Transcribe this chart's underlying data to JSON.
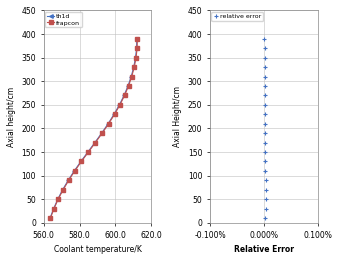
{
  "axial_heights": [
    10,
    30,
    50,
    70,
    90,
    110,
    130,
    150,
    170,
    190,
    210,
    230,
    250,
    270,
    290,
    310,
    330,
    350,
    370,
    390
  ],
  "th1d_temps": [
    563.5,
    565.5,
    567.8,
    570.5,
    573.6,
    577.0,
    580.7,
    584.6,
    588.5,
    592.3,
    595.9,
    599.2,
    602.2,
    604.8,
    607.0,
    608.8,
    610.2,
    611.2,
    611.8,
    611.9
  ],
  "frapcon_temps": [
    563.7,
    565.7,
    568.0,
    570.8,
    573.9,
    577.3,
    581.0,
    584.9,
    588.8,
    592.6,
    596.2,
    599.5,
    602.5,
    605.1,
    607.3,
    609.1,
    610.5,
    611.5,
    612.1,
    612.2
  ],
  "relative_errors": [
    3e-05,
    4e-05,
    4e-05,
    4e-05,
    3.5e-05,
    3e-05,
    2.8e-05,
    2.6e-05,
    2.4e-05,
    2.2e-05,
    2e-05,
    1.9e-05,
    1.8e-05,
    1.7e-05,
    1.6e-05,
    1.5e-05,
    1.4e-05,
    1.3e-05,
    1.2e-05,
    1.1e-05
  ],
  "th1d_color": "#4472C4",
  "frapcon_color": "#C0504D",
  "error_color": "#4472C4",
  "ylim": [
    0,
    450
  ],
  "yticks": [
    0,
    50,
    100,
    150,
    200,
    250,
    300,
    350,
    400,
    450
  ],
  "xlim_temp": [
    560,
    620
  ],
  "xticks_temp": [
    560.0,
    580.0,
    600.0,
    620.0
  ],
  "xlim_err": [
    -0.001,
    0.001
  ],
  "xticks_err": [
    -0.001,
    0.0,
    0.001
  ],
  "ylabel1": "Axial height/cm",
  "ylabel2": "Axial Height/cm",
  "xlabel1": "Coolant temperature/K",
  "xlabel2": "Relative Error",
  "legend1_th1d": "th1d",
  "legend1_frapcon": "frapcon",
  "legend2": "relative error",
  "bg_color": "#FFFFFF",
  "grid_color": "#C0C0C0",
  "plot_bg_color": "#FFFFFF"
}
